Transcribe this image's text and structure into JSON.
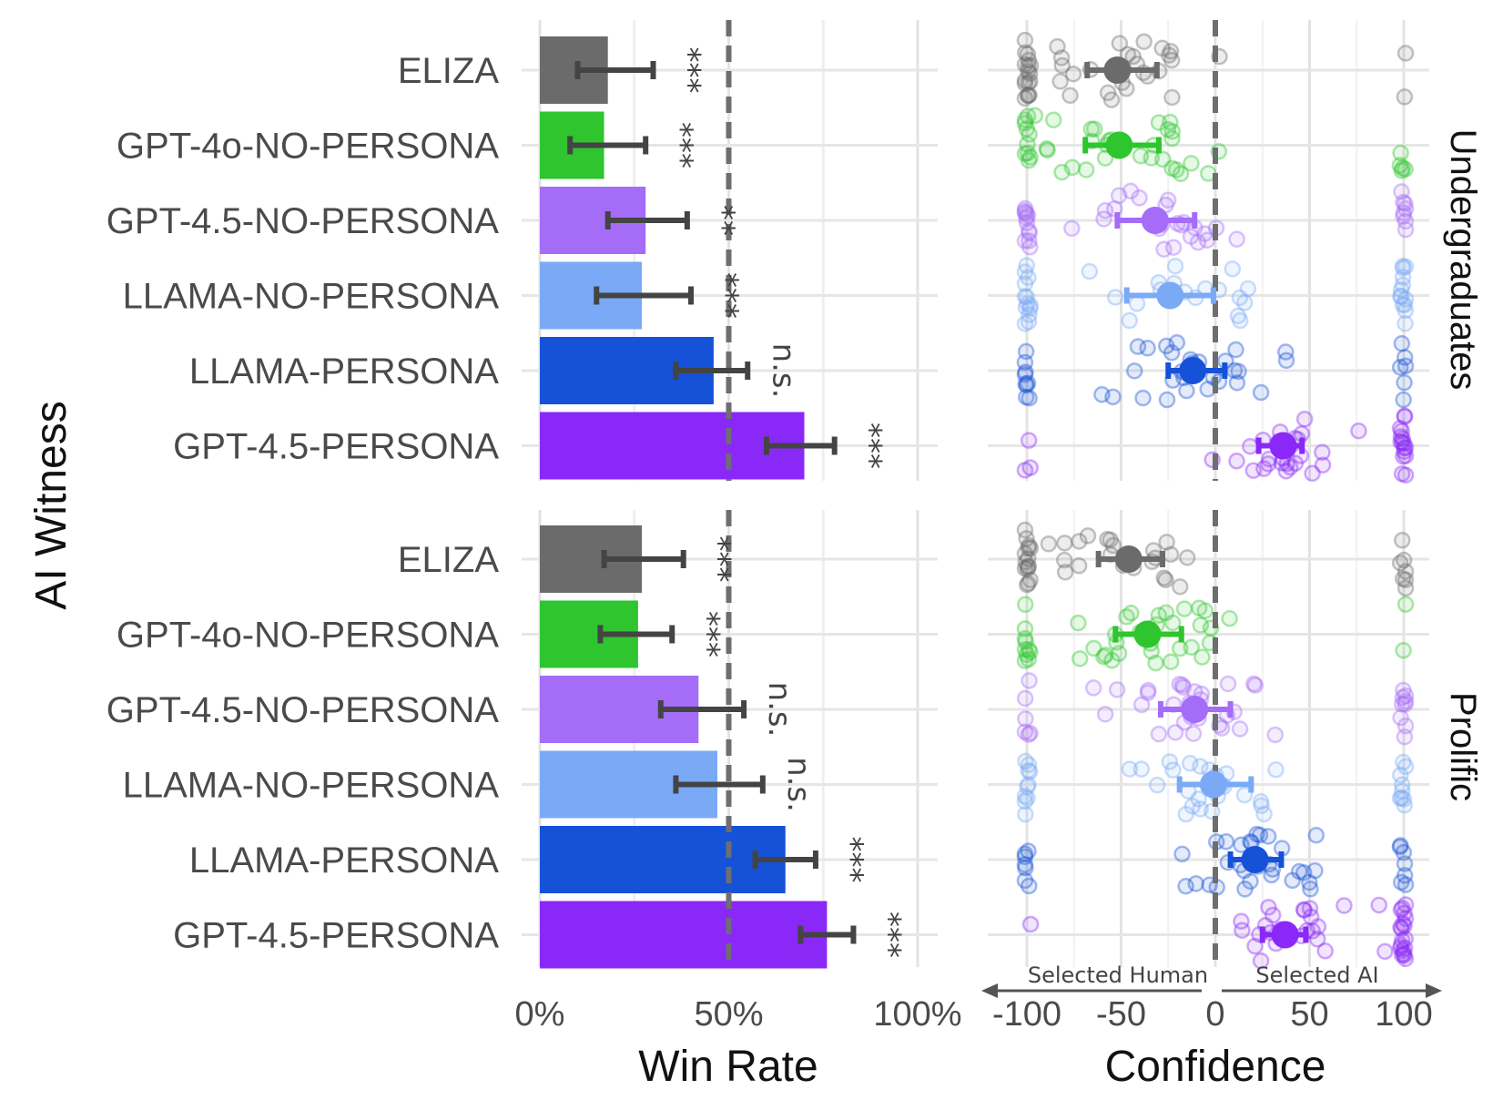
{
  "chart_data": [
    {
      "type": "bar",
      "xlabel": "Win Rate",
      "ylabel": "AI Witness",
      "xlim": [
        0,
        100
      ],
      "xticks": [
        "0%",
        "50%",
        "100%"
      ],
      "reference_line": 50,
      "categories": [
        "ELIZA",
        "GPT-4o-NO-PERSONA",
        "GPT-4.5-NO-PERSONA",
        "LLAMA-NO-PERSONA",
        "LLAMA-PERSONA",
        "GPT-4.5-PERSONA"
      ],
      "colors": [
        "#6b6b6b",
        "#2ec52e",
        "#a56cf8",
        "#7aaaf6",
        "#1652d8",
        "#8a28f8"
      ],
      "facets": [
        {
          "name": "Undergraduates",
          "values": [
            18,
            17,
            28,
            27,
            46,
            70
          ],
          "ci_low": [
            10,
            8,
            18,
            15,
            36,
            60
          ],
          "ci_high": [
            30,
            28,
            39,
            40,
            55,
            78
          ],
          "significance": [
            "***",
            "***",
            "**",
            "***",
            "n.s.",
            "***"
          ]
        },
        {
          "name": "Prolific",
          "values": [
            27,
            26,
            42,
            47,
            65,
            76
          ],
          "ci_low": [
            17,
            16,
            32,
            36,
            57,
            69
          ],
          "ci_high": [
            38,
            35,
            54,
            59,
            73,
            83
          ],
          "significance": [
            "***",
            "***",
            "n.s.",
            "n.s.",
            "***",
            "***"
          ]
        }
      ]
    },
    {
      "type": "scatter",
      "xlabel": "Confidence",
      "xlim": [
        -100,
        100
      ],
      "xticks": [
        "-100",
        "-50",
        "0",
        "50",
        "100"
      ],
      "reference_line": 0,
      "direction_labels": [
        "Selected Human",
        "Selected AI"
      ],
      "categories": [
        "ELIZA",
        "GPT-4o-NO-PERSONA",
        "GPT-4.5-NO-PERSONA",
        "LLAMA-NO-PERSONA",
        "LLAMA-PERSONA",
        "GPT-4.5-PERSONA"
      ],
      "colors": [
        "#6b6b6b",
        "#2ec52e",
        "#a56cf8",
        "#7aaaf6",
        "#1652d8",
        "#8a28f8"
      ],
      "facets": [
        {
          "name": "Undergraduates",
          "mean": [
            -52,
            -51,
            -32,
            -24,
            -12,
            36
          ],
          "ci_low": [
            -68,
            -69,
            -52,
            -47,
            -25,
            23
          ],
          "ci_high": [
            -31,
            -30,
            -11,
            -1,
            5,
            46
          ]
        },
        {
          "name": "Prolific",
          "mean": [
            -46,
            -36,
            -11,
            -1,
            21,
            37
          ],
          "ci_low": [
            -62,
            -53,
            -29,
            -19,
            8,
            25
          ],
          "ci_high": [
            -28,
            -18,
            8,
            19,
            35,
            48
          ]
        }
      ],
      "individual_points": "semi-transparent jittered responses clustered near -100 and 100"
    }
  ]
}
